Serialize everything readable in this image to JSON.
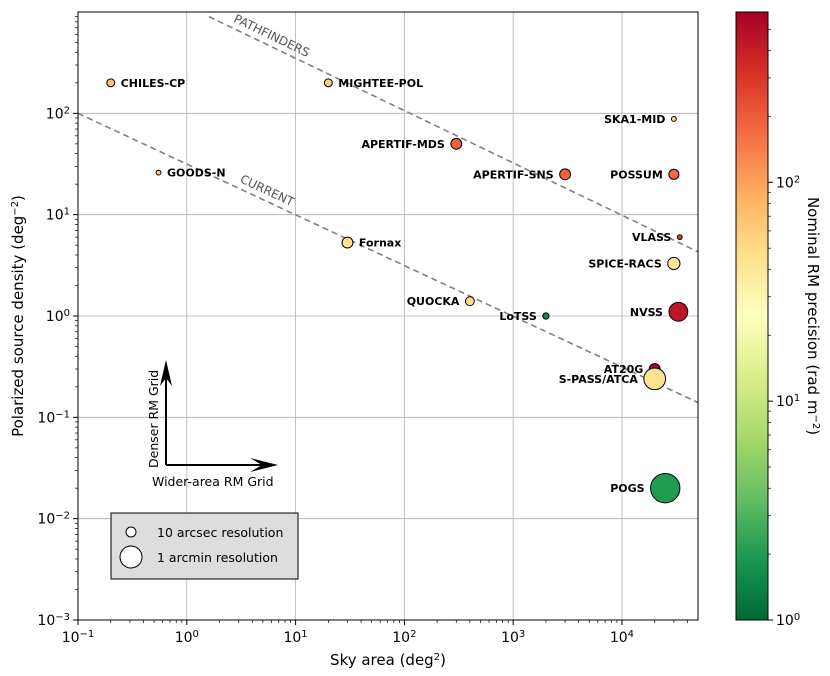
{
  "chart_data": {
    "type": "scatter",
    "xlabel": "Sky area (deg²)",
    "ylabel": "Polarized source density (deg⁻²)",
    "xscale": "log",
    "yscale": "log",
    "xlim": [
      0.1,
      50000
    ],
    "ylim": [
      0.001,
      1000
    ],
    "grid": true,
    "x_ticks": [
      {
        "value": 0.1,
        "base": "10",
        "exp": "−1"
      },
      {
        "value": 1,
        "base": "10",
        "exp": "0"
      },
      {
        "value": 10,
        "base": "10",
        "exp": "1"
      },
      {
        "value": 100,
        "base": "10",
        "exp": "2"
      },
      {
        "value": 1000,
        "base": "10",
        "exp": "3"
      },
      {
        "value": 10000,
        "base": "10",
        "exp": "4"
      }
    ],
    "y_ticks": [
      {
        "value": 0.001,
        "base": "10",
        "exp": "−3"
      },
      {
        "value": 0.01,
        "base": "10",
        "exp": "−2"
      },
      {
        "value": 0.1,
        "base": "10",
        "exp": "−1"
      },
      {
        "value": 1,
        "base": "10",
        "exp": "0"
      },
      {
        "value": 10,
        "base": "10",
        "exp": "1"
      },
      {
        "value": 100,
        "base": "10",
        "exp": "2"
      }
    ],
    "colorbar": {
      "label": "Nominal RM precision (rad m⁻²)",
      "range": [
        1,
        600
      ],
      "scale": "log",
      "colormap": "RdYlGn_r",
      "ticks": [
        {
          "value": 1,
          "base": "10",
          "exp": "0"
        },
        {
          "value": 10,
          "base": "10",
          "exp": "1"
        },
        {
          "value": 100,
          "base": "10",
          "exp": "2"
        }
      ]
    },
    "points": [
      {
        "name": "CHILES-CP",
        "area": 0.2,
        "density": 200,
        "resolution_arcsec": 8,
        "rm_precision": 70,
        "label_side": "right"
      },
      {
        "name": "MIGHTEE-POL",
        "area": 20,
        "density": 200,
        "resolution_arcsec": 8,
        "rm_precision": 55,
        "label_side": "right"
      },
      {
        "name": "SKA1-MID",
        "area": 30000,
        "density": 88,
        "resolution_arcsec": 3,
        "rm_precision": 50,
        "label_side": "left"
      },
      {
        "name": "GOODS-N",
        "area": 0.55,
        "density": 26,
        "resolution_arcsec": 3,
        "rm_precision": 60,
        "label_side": "right"
      },
      {
        "name": "APERTIF-MDS",
        "area": 300,
        "density": 50,
        "resolution_arcsec": 15,
        "rm_precision": 190,
        "label_side": "left"
      },
      {
        "name": "APERTIF-SNS",
        "area": 3000,
        "density": 25,
        "resolution_arcsec": 15,
        "rm_precision": 190,
        "label_side": "left"
      },
      {
        "name": "POSSUM",
        "area": 30000,
        "density": 25,
        "resolution_arcsec": 13,
        "rm_precision": 175,
        "label_side": "left"
      },
      {
        "name": "Fornax",
        "area": 30,
        "density": 5.3,
        "resolution_arcsec": 15,
        "rm_precision": 45,
        "label_side": "right"
      },
      {
        "name": "VLASS",
        "area": 34000,
        "density": 6,
        "resolution_arcsec": 3,
        "rm_precision": 250,
        "label_side": "left"
      },
      {
        "name": "SPICE-RACS",
        "area": 30000,
        "density": 3.3,
        "resolution_arcsec": 19,
        "rm_precision": 40,
        "label_side": "left"
      },
      {
        "name": "QUOCKA",
        "area": 400,
        "density": 1.4,
        "resolution_arcsec": 10,
        "rm_precision": 45,
        "label_side": "left"
      },
      {
        "name": "LoTSS",
        "area": 2000,
        "density": 1.0,
        "resolution_arcsec": 5,
        "rm_precision": 1.5,
        "label_side": "left"
      },
      {
        "name": "NVSS",
        "area": 33000,
        "density": 1.1,
        "resolution_arcsec": 45,
        "rm_precision": 450,
        "label_side": "left"
      },
      {
        "name": "AT20G",
        "area": 20000,
        "density": 0.3,
        "resolution_arcsec": 15,
        "rm_precision": 550,
        "label_side": "left"
      },
      {
        "name": "S-PASS/ATCA",
        "area": 20000,
        "density": 0.24,
        "resolution_arcsec": 60,
        "rm_precision": 45,
        "label_side": "left"
      },
      {
        "name": "POGS",
        "area": 25000,
        "density": 0.02,
        "resolution_arcsec": 110,
        "rm_precision": 2,
        "label_side": "left"
      }
    ],
    "guide_lines": [
      {
        "name": "CURRENT",
        "points": [
          [
            0.1,
            100
          ],
          [
            50000,
            0.14
          ]
        ]
      },
      {
        "name": "PATHFINDERS",
        "points": [
          [
            1.6,
            900
          ],
          [
            50000,
            4.3
          ]
        ]
      }
    ],
    "annotations": {
      "up_arrow_label": "Denser RM Grid",
      "right_arrow_label": "Wider-area RM Grid"
    },
    "legend": {
      "location": "lower-left",
      "entries": [
        {
          "label": "10 arcsec resolution",
          "resolution_arcsec": 10
        },
        {
          "label": "1 arcmin resolution",
          "resolution_arcsec": 60
        }
      ]
    }
  }
}
